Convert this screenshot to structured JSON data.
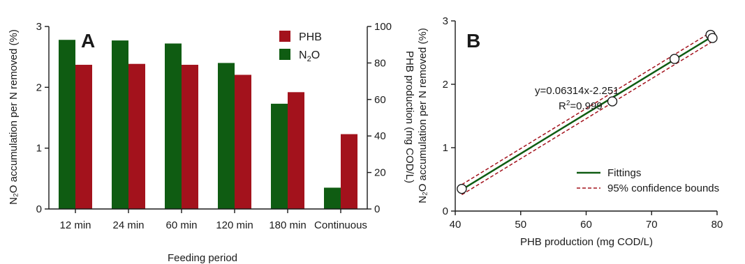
{
  "panel_a_letter": "A",
  "panel_b_letter": "B",
  "chart_data": [
    {
      "type": "bar",
      "panel": "A",
      "categories": [
        "12 min",
        "24 min",
        "60 min",
        "120 min",
        "180 min",
        "Continuous"
      ],
      "xlabel": "Feeding period",
      "ylabel_left": "N₂O accumulation per N removed (%)",
      "ylabel_right": "PHB production (mg COD/L)",
      "ylim_left": [
        0,
        3
      ],
      "ylim_right": [
        0,
        100
      ],
      "yticks_left": [
        "0",
        "1",
        "2",
        "3"
      ],
      "yticks_right": [
        "0",
        "20",
        "40",
        "60",
        "80",
        "100"
      ],
      "legend_position": "top-right",
      "series": [
        {
          "name": "N₂O",
          "name_main": "N",
          "name_sub": "2",
          "name_tail": "O",
          "axis": "left",
          "color": "#0f5c12",
          "values": [
            2.78,
            2.77,
            2.72,
            2.4,
            1.73,
            0.35
          ]
        },
        {
          "name": "PHB",
          "axis": "right",
          "color": "#a3121c",
          "values": [
            79,
            79.5,
            79,
            73.5,
            64,
            41
          ]
        }
      ]
    },
    {
      "type": "scatter",
      "panel": "B",
      "xlabel": "PHB production (mg COD/L)",
      "ylabel": "N₂O accumulation per N removed (%)",
      "xlim": [
        40,
        80
      ],
      "ylim": [
        0,
        3
      ],
      "xticks": [
        "40",
        "50",
        "60",
        "70",
        "80"
      ],
      "yticks": [
        "0",
        "1",
        "2",
        "3"
      ],
      "points": {
        "x": [
          41,
          64,
          73.5,
          79,
          79.3
        ],
        "y": [
          0.35,
          1.73,
          2.4,
          2.78,
          2.73
        ]
      },
      "fit": {
        "slope": 0.06314,
        "intercept": -2.251,
        "color": "#0f5c12"
      },
      "confidence_band": {
        "half_width": 0.08,
        "color": "#a3121c"
      },
      "equation": "y=0.06314x-2.251",
      "r2_prefix": "R",
      "r2_sup": "2",
      "r2_value": "=0.999",
      "legend_position": "bottom-right",
      "legend": [
        "Fittings",
        "95% confidence bounds"
      ]
    }
  ]
}
